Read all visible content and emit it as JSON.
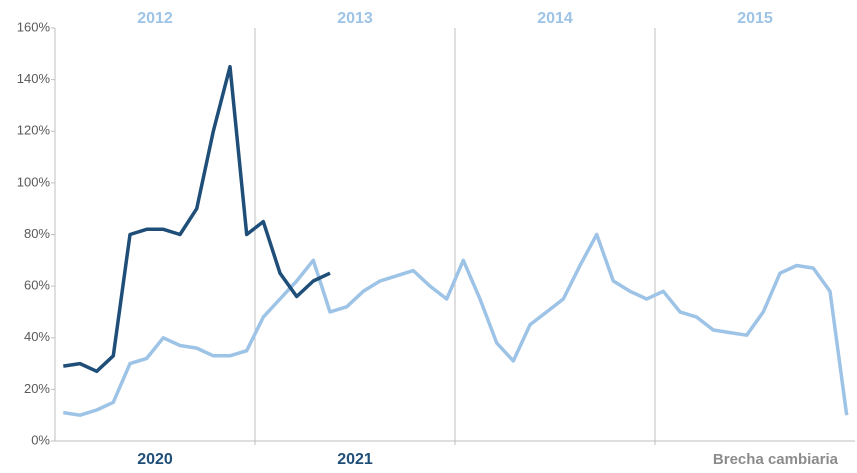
{
  "chart_data": {
    "type": "line",
    "top_axis_labels": [
      "2012",
      "2013",
      "2014",
      "2015"
    ],
    "bottom_axis_labels": [
      "2020",
      "2021"
    ],
    "annotation": "Brecha cambiaria",
    "ylim": [
      0,
      160
    ],
    "yticks": [
      {
        "value": 0,
        "label": "0%"
      },
      {
        "value": 20,
        "label": "20%"
      },
      {
        "value": 40,
        "label": "40%"
      },
      {
        "value": 60,
        "label": "60%"
      },
      {
        "value": 80,
        "label": "80%"
      },
      {
        "value": 100,
        "label": "100%"
      },
      {
        "value": 120,
        "label": "120%"
      },
      {
        "value": 140,
        "label": "140%"
      },
      {
        "value": 160,
        "label": "160%"
      }
    ],
    "series": [
      {
        "color": "#9dc3e6",
        "values": [
          11,
          10,
          12,
          15,
          30,
          32,
          40,
          37,
          36,
          33,
          33,
          35,
          48,
          55,
          62,
          70,
          50,
          52,
          58,
          62,
          64,
          66,
          60,
          55,
          70,
          55,
          38,
          31,
          45,
          50,
          55,
          68,
          80,
          62,
          58,
          55,
          58,
          50,
          48,
          43,
          42,
          41,
          50,
          65,
          68,
          67,
          58,
          10
        ]
      },
      {
        "color": "#1f4e79",
        "values": [
          29,
          30,
          27,
          33,
          80,
          82,
          82,
          80,
          90,
          120,
          145,
          80,
          85,
          65,
          56,
          62,
          65
        ]
      }
    ]
  }
}
